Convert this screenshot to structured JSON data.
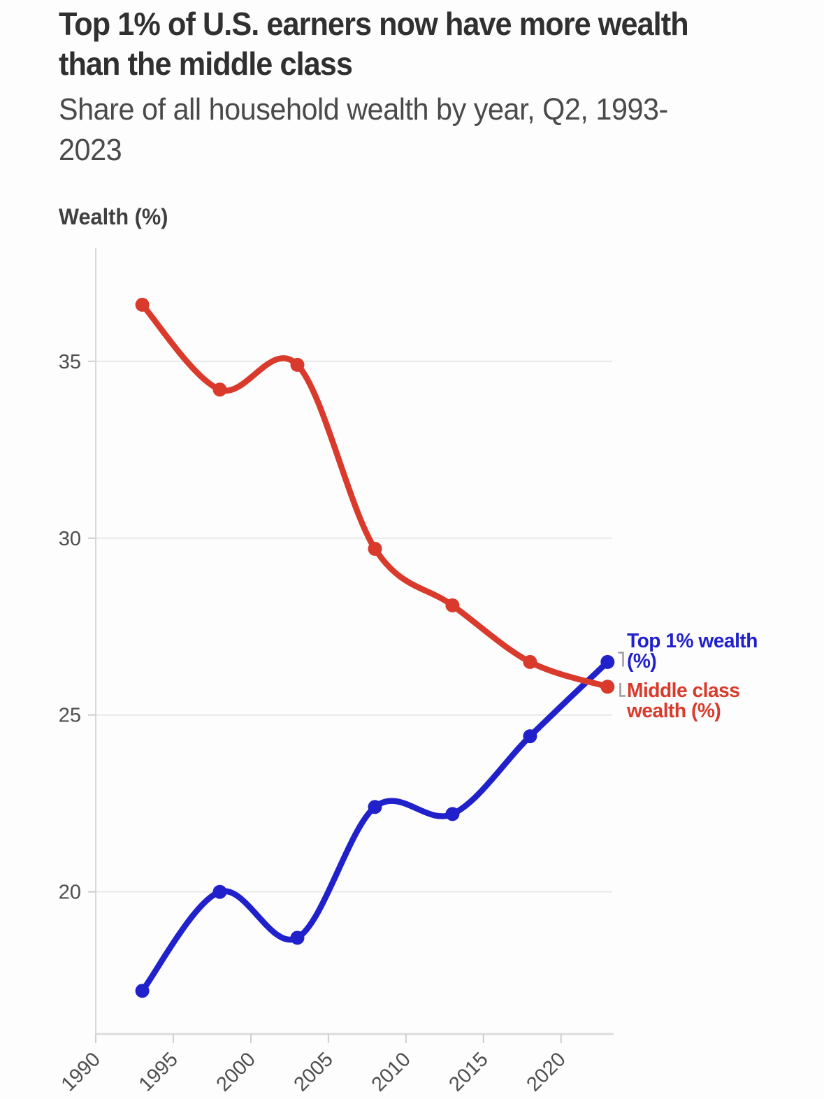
{
  "chart_data": {
    "type": "line",
    "title": "Top 1% of U.S. earners now have more wealth than the middle class",
    "title_lines": [
      "Top 1% of U.S. earners now have more wealth",
      "than the middle class"
    ],
    "subtitle": "Share of all household wealth by year, Q2, 1993-2023",
    "subtitle_lines": [
      "Share of all household wealth by year, Q2, 1993-",
      "2023"
    ],
    "ylabel": "Wealth (%)",
    "xlabel": "",
    "x": [
      1993,
      1998,
      2003,
      2008,
      2013,
      2018,
      2023
    ],
    "series": [
      {
        "name": "Top 1% wealth (%)",
        "legend_lines": [
          "Top 1% wealth",
          "(%)"
        ],
        "color": "#2121cc",
        "values": [
          17.2,
          20.0,
          18.7,
          22.4,
          22.2,
          24.4,
          26.5
        ]
      },
      {
        "name": "Middle class wealth (%)",
        "legend_lines": [
          "Middle class",
          "wealth (%)"
        ],
        "color": "#d93a2b",
        "values": [
          36.6,
          34.2,
          34.9,
          29.7,
          28.1,
          26.5,
          25.8
        ]
      }
    ],
    "x_ticks": [
      1990,
      1995,
      2000,
      2005,
      2010,
      2015,
      2020
    ],
    "y_ticks": [
      35,
      30,
      25,
      20
    ],
    "x_range": [
      1990,
      2023.3
    ],
    "y_range": [
      16.0,
      38.2
    ],
    "grid": "horizontal",
    "legend_position": "right",
    "colors": {
      "grid": "#e8e8e8",
      "axis": "#d8d8d8",
      "tick_label": "#4e4e4e",
      "connector": "#9b9b9b"
    }
  }
}
